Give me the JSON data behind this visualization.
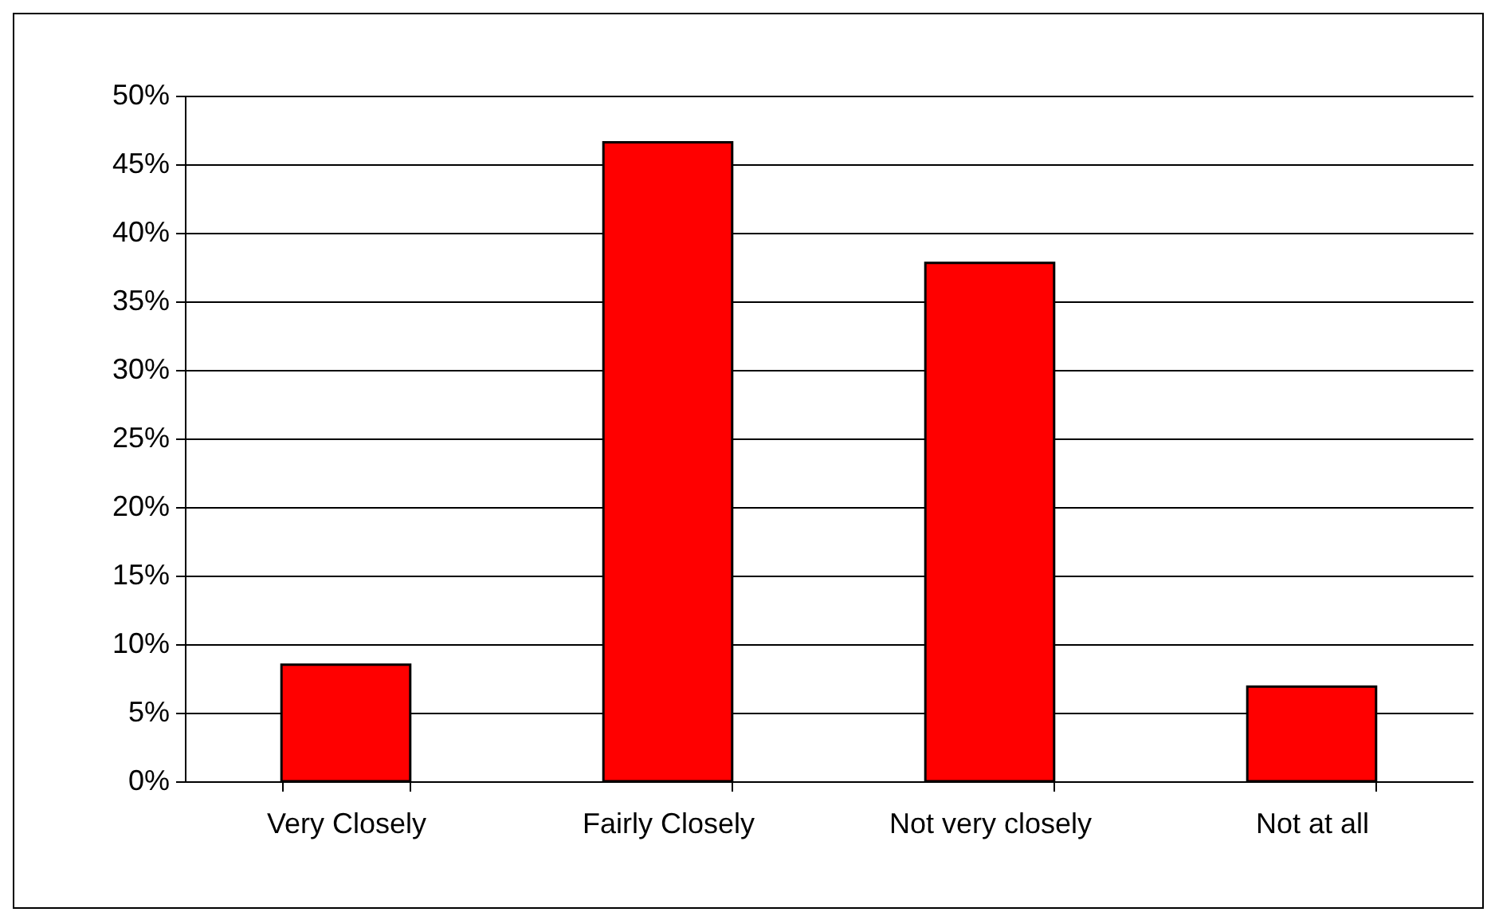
{
  "chart_data": {
    "type": "bar",
    "categories": [
      "Very Closely",
      "Fairly Closely",
      "Not very closely",
      "Not at all"
    ],
    "values": [
      8.5,
      46.6,
      37.8,
      6.9
    ],
    "color": "#ff0000",
    "ylim": [
      0,
      50
    ],
    "yticks": [
      {
        "value": 0,
        "label": "0%"
      },
      {
        "value": 5,
        "label": "5%"
      },
      {
        "value": 10,
        "label": "10%"
      },
      {
        "value": 15,
        "label": "15%"
      },
      {
        "value": 20,
        "label": "20%"
      },
      {
        "value": 25,
        "label": "25%"
      },
      {
        "value": 30,
        "label": "30%"
      },
      {
        "value": 35,
        "label": "35%"
      },
      {
        "value": 40,
        "label": "40%"
      },
      {
        "value": 45,
        "label": "45%"
      },
      {
        "value": 50,
        "label": "50%"
      }
    ],
    "grid": "y"
  }
}
